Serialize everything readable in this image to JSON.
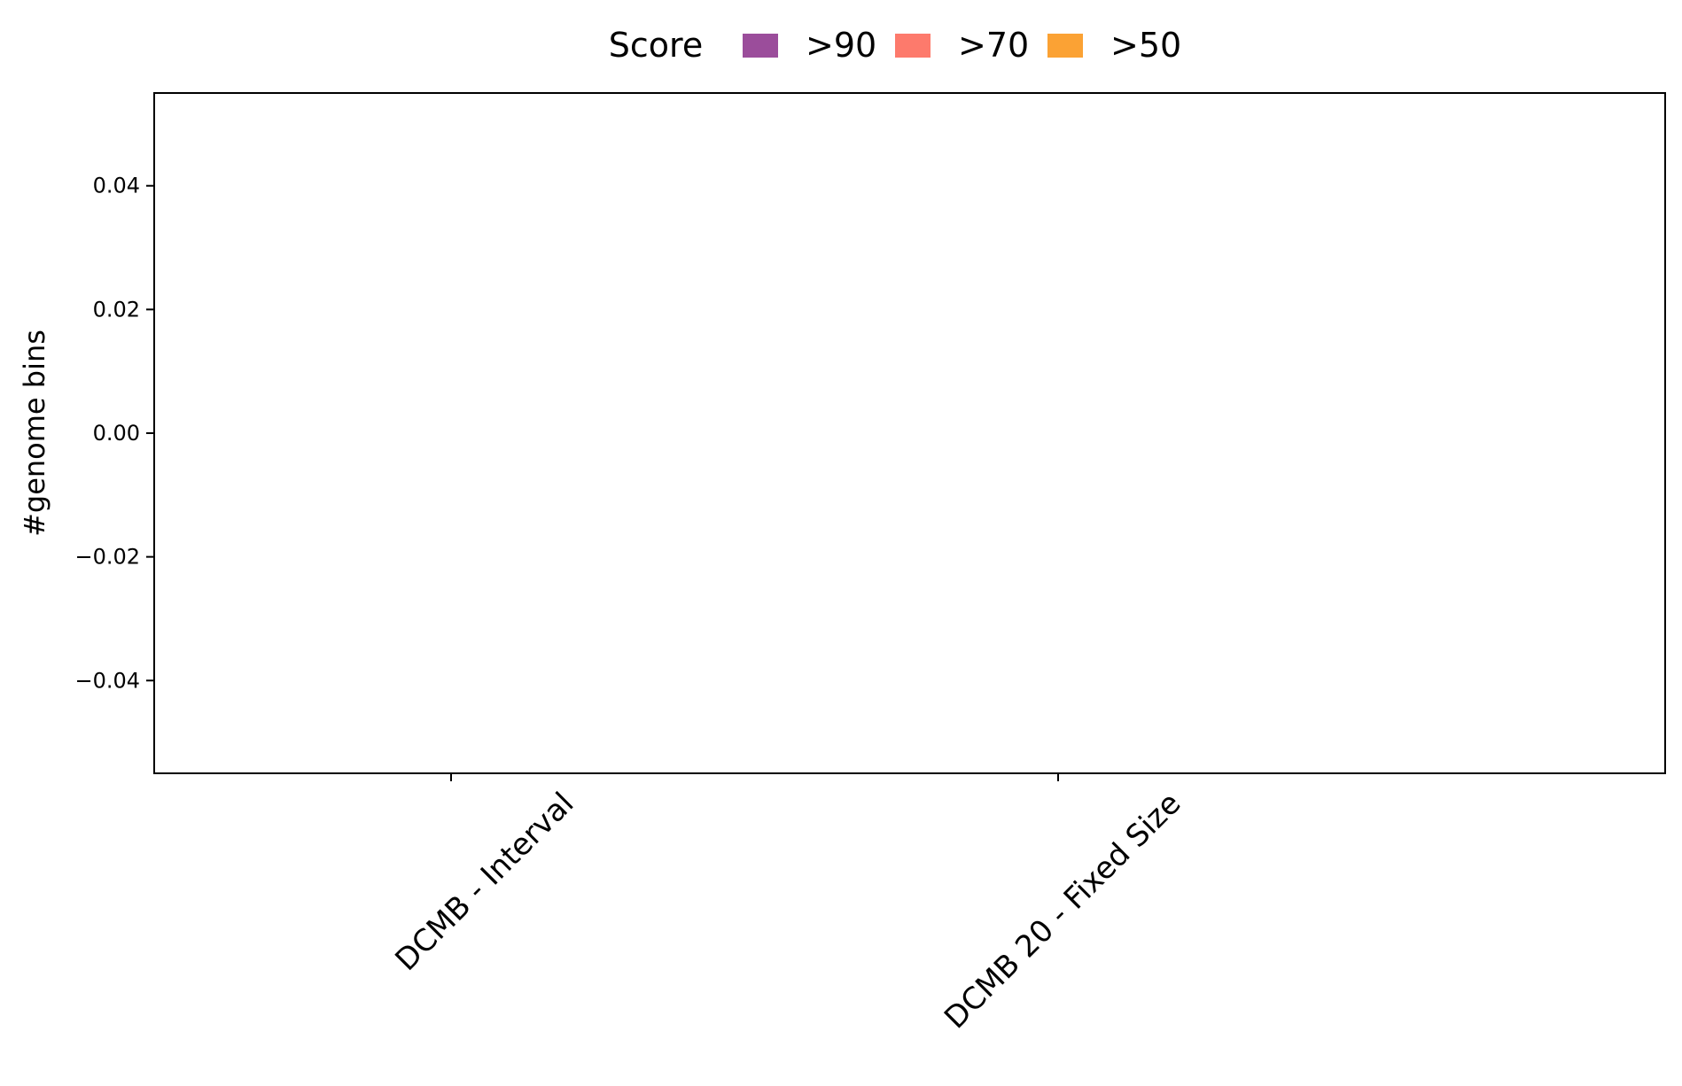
{
  "chart_data": {
    "type": "bar",
    "stacked": true,
    "categories": [
      "DCMB - Interval",
      "DCMB 20 - Fixed Size"
    ],
    "series": [
      {
        "name": ">90",
        "color": "#9b4d9b",
        "values": [
          0,
          0
        ]
      },
      {
        "name": ">70",
        "color": "#fd7a6c",
        "values": [
          0,
          0
        ]
      },
      {
        "name": ">50",
        "color": "#fba234",
        "values": [
          0,
          0
        ]
      }
    ],
    "title": "",
    "xlabel": "",
    "ylabel": "#genome bins",
    "ylim": [
      -0.055,
      0.055
    ],
    "yticks": [
      0.04,
      0.02,
      0.0,
      -0.02,
      -0.04
    ],
    "ytick_labels": [
      "0.04",
      "0.02",
      "0.00",
      "−0.02",
      "−0.04"
    ],
    "grid": false,
    "legend": {
      "title": "Score",
      "placement": "top-center",
      "entries": [
        ">90",
        ">70",
        ">50"
      ]
    }
  }
}
